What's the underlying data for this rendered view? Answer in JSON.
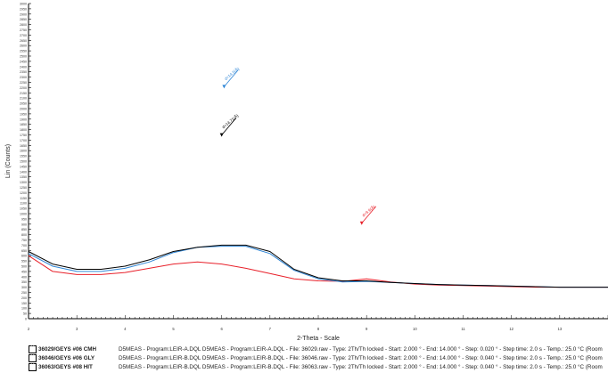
{
  "chart_data": {
    "type": "line",
    "xlabel": "2-Theta - Scale",
    "ylabel": "Lin (Counts)",
    "xlim": [
      2,
      14
    ],
    "ylim": [
      0,
      3000
    ],
    "x_ticks": [
      "2",
      "3",
      "4",
      "5",
      "6",
      "7",
      "8",
      "9",
      "10",
      "11",
      "12",
      "13"
    ],
    "y_ticks": [
      "0",
      "50",
      "100",
      "150",
      "200",
      "250",
      "300",
      "350",
      "400",
      "450",
      "500",
      "550",
      "600",
      "650",
      "700",
      "750",
      "800",
      "850",
      "900",
      "950",
      "1000",
      "1050",
      "1100",
      "1150",
      "1200",
      "1250",
      "1300",
      "1350",
      "1400",
      "1450",
      "1500",
      "1550",
      "1600",
      "1650",
      "1700",
      "1750",
      "1800",
      "1850",
      "1900",
      "1950",
      "2000",
      "2050",
      "2100",
      "2150",
      "2200",
      "2250",
      "2300",
      "2350",
      "2400",
      "2450",
      "2500",
      "2550",
      "2600",
      "2650",
      "2700",
      "2750",
      "2800",
      "2850",
      "2900",
      "2950",
      "3000"
    ],
    "grid": false,
    "series": [
      {
        "name": "36029/GEYS #06 CMH",
        "color": "#000000",
        "icon": "X",
        "x": [
          2.0,
          2.5,
          3.0,
          3.5,
          4.0,
          4.5,
          5.0,
          5.5,
          6.0,
          6.5,
          7.0,
          7.5,
          8.0,
          8.5,
          9.0,
          9.5,
          10.0,
          10.5,
          11.0,
          11.5,
          12.0,
          12.5,
          13.0,
          13.5,
          14.0
        ],
        "y": [
          640,
          520,
          470,
          470,
          500,
          560,
          640,
          680,
          700,
          700,
          640,
          470,
          390,
          360,
          360,
          345,
          335,
          325,
          320,
          315,
          310,
          305,
          300,
          300,
          300
        ]
      },
      {
        "name": "36046/GEYS #06 GLY",
        "color": "#2f86d6",
        "icon": "X",
        "x": [
          2.0,
          2.5,
          3.0,
          3.5,
          4.0,
          4.5,
          5.0,
          5.5,
          6.0,
          6.5,
          7.0,
          7.5,
          8.0,
          8.5,
          9.0,
          9.5,
          10.0,
          10.5,
          11.0,
          11.5,
          12.0,
          12.5,
          13.0,
          13.5,
          14.0
        ],
        "y": [
          620,
          500,
          450,
          450,
          480,
          540,
          630,
          680,
          690,
          690,
          620,
          460,
          380,
          350,
          355,
          345,
          335,
          325,
          320,
          315,
          310,
          305,
          300,
          300,
          300
        ]
      },
      {
        "name": "36063/GEYS #08 HIT",
        "color": "#e8202a",
        "icon": "X",
        "x": [
          2.0,
          2.5,
          3.0,
          3.5,
          4.0,
          4.5,
          5.0,
          5.5,
          6.0,
          6.5,
          7.0,
          7.5,
          8.0,
          8.5,
          9.0,
          9.5,
          10.0,
          10.5,
          11.0,
          11.5,
          12.0,
          12.5,
          13.0,
          13.5,
          14.0
        ],
        "y": [
          600,
          450,
          420,
          420,
          440,
          480,
          520,
          540,
          520,
          480,
          430,
          380,
          360,
          355,
          380,
          350,
          330,
          320,
          315,
          310,
          305,
          300,
          300,
          300,
          300
        ]
      }
    ],
    "annotations": [
      {
        "text": "d=14.5(Å)",
        "x": 6.05,
        "y": 2200,
        "color": "#2f86d6"
      },
      {
        "text": "d=14.71(Å)",
        "x": 6.0,
        "y": 1740,
        "color": "#000000"
      },
      {
        "text": "d=9.9(Å)",
        "x": 8.9,
        "y": 900,
        "color": "#e8202a"
      }
    ]
  },
  "legend": [
    {
      "name": "36029/GEYS #06 CMH",
      "color": "#000000",
      "icon": "X",
      "desc": "D5MEAS - Program:LEIR-A.DQL D5MEAS - Program:LEIR-A.DQL - File: 36029.raw - Type: 2Th/Th locked - Start: 2.000 ° - End: 14.000 ° - Step: 0.020 ° - Step time: 2.0 s - Temp.: 25.0 °C (Room"
    },
    {
      "name": "36046/GEYS #06 GLY",
      "color": "#2f86d6",
      "icon": "X",
      "desc": "D5MEAS - Program:LEIR-B.DQL D5MEAS - Program:LEIR-B.DQL - File: 36046.raw - Type: 2Th/Th locked - Start: 2.000 ° - End: 14.000 ° - Step: 0.040 ° - Step time: 2.0 s - Temp.: 25.0 °C (Room"
    },
    {
      "name": "36063/GEYS #08 HIT",
      "color": "#e8202a",
      "icon": "X",
      "desc": "D5MEAS - Program:LEIR-B.DQL D5MEAS - Program:LEIR-B.DQL - File: 36063.raw - Type: 2Th/Th locked - Start: 2.000 ° - End: 14.000 ° - Step: 0.040 ° - Step time: 2.0 s - Temp.: 25.0 °C (Room"
    }
  ]
}
